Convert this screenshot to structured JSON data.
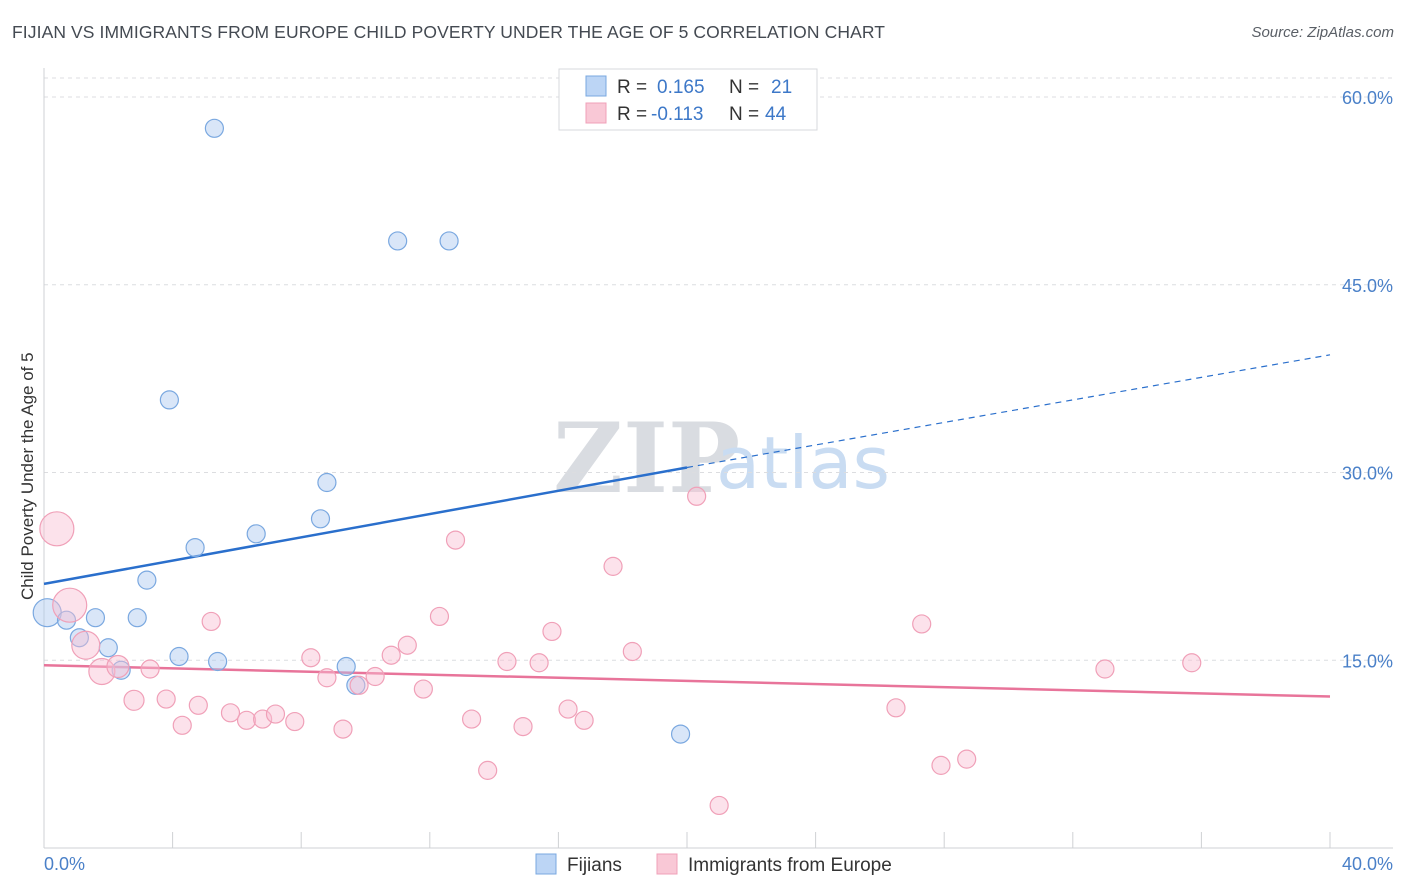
{
  "title": "FIJIAN VS IMMIGRANTS FROM EUROPE CHILD POVERTY UNDER THE AGE OF 5 CORRELATION CHART",
  "source": "Source: ZipAtlas.com",
  "watermark": {
    "zip": "ZIP",
    "atlas": "atlas"
  },
  "legend_box": {
    "rows": [
      {
        "r_label": "R = ",
        "r_value": "0.165",
        "n_label": "N = ",
        "n_value": "21"
      },
      {
        "r_label": "R = ",
        "r_value": "-0.113",
        "n_label": "N = ",
        "n_value": "44"
      }
    ]
  },
  "chart_data": {
    "type": "scatter",
    "title": "FIJIAN VS IMMIGRANTS FROM EUROPE CHILD POVERTY UNDER THE AGE OF 5 CORRELATION CHART",
    "xlabel": "",
    "ylabel": "Child Poverty Under the Age of 5",
    "xlim": [
      0,
      40
    ],
    "ylim": [
      0,
      63
    ],
    "x_tick_labels": [
      "0.0%",
      "40.0%"
    ],
    "y_ticks": [
      15,
      30,
      45,
      60
    ],
    "y_tick_labels": [
      "15.0%",
      "30.0%",
      "45.0%",
      "60.0%"
    ],
    "grid": "horizontal dashed",
    "legend_position": "bottom",
    "colors": {
      "fijians": "#7aa8e0",
      "europe": "#f0a0b8",
      "fijians_line": "#2a6fcc",
      "europe_line": "#e8749a"
    },
    "series": [
      {
        "name": "Fijians",
        "points": [
          [
            0.1,
            18.8,
            14
          ],
          [
            0.7,
            18.2,
            9
          ],
          [
            1.1,
            16.8,
            9
          ],
          [
            1.6,
            18.4,
            9
          ],
          [
            2.0,
            16.0,
            9
          ],
          [
            2.4,
            14.2,
            9
          ],
          [
            2.9,
            18.4,
            9
          ],
          [
            3.2,
            21.4,
            9
          ],
          [
            3.9,
            35.8,
            9
          ],
          [
            4.2,
            15.3,
            9
          ],
          [
            4.7,
            24.0,
            9
          ],
          [
            5.3,
            57.5,
            9
          ],
          [
            5.4,
            14.9,
            9
          ],
          [
            6.6,
            25.1,
            9
          ],
          [
            8.6,
            26.3,
            9
          ],
          [
            8.8,
            29.2,
            9
          ],
          [
            9.4,
            14.5,
            9
          ],
          [
            9.7,
            13.0,
            9
          ],
          [
            11.0,
            48.5,
            9
          ],
          [
            12.6,
            48.5,
            9
          ],
          [
            19.8,
            9.1,
            9
          ]
        ],
        "trend": {
          "x0": 0,
          "y0": 21.1,
          "x1": 20,
          "y1": 30.4,
          "dash_to_x": 40,
          "dash_to_y": 39.4
        }
      },
      {
        "name": "Immigrants from Europe",
        "points": [
          [
            0.4,
            25.5,
            17
          ],
          [
            0.8,
            19.4,
            17
          ],
          [
            1.3,
            16.2,
            14
          ],
          [
            1.8,
            14.1,
            13
          ],
          [
            2.3,
            14.5,
            11
          ],
          [
            2.8,
            11.8,
            10
          ],
          [
            3.3,
            14.3,
            9
          ],
          [
            3.8,
            11.9,
            9
          ],
          [
            4.3,
            9.8,
            9
          ],
          [
            4.8,
            11.4,
            9
          ],
          [
            5.2,
            18.1,
            9
          ],
          [
            5.8,
            10.8,
            9
          ],
          [
            6.3,
            10.2,
            9
          ],
          [
            6.8,
            10.3,
            9
          ],
          [
            7.2,
            10.7,
            9
          ],
          [
            7.8,
            10.1,
            9
          ],
          [
            8.3,
            15.2,
            9
          ],
          [
            8.8,
            13.6,
            9
          ],
          [
            9.3,
            9.5,
            9
          ],
          [
            9.8,
            13.0,
            9
          ],
          [
            10.3,
            13.7,
            9
          ],
          [
            10.8,
            15.4,
            9
          ],
          [
            11.3,
            16.2,
            9
          ],
          [
            11.8,
            12.7,
            9
          ],
          [
            12.3,
            18.5,
            9
          ],
          [
            12.8,
            24.6,
            9
          ],
          [
            13.3,
            10.3,
            9
          ],
          [
            13.8,
            6.2,
            9
          ],
          [
            14.4,
            14.9,
            9
          ],
          [
            14.9,
            9.7,
            9
          ],
          [
            15.4,
            14.8,
            9
          ],
          [
            15.8,
            17.3,
            9
          ],
          [
            16.3,
            11.1,
            9
          ],
          [
            16.8,
            10.2,
            9
          ],
          [
            17.7,
            22.5,
            9
          ],
          [
            18.3,
            15.7,
            9
          ],
          [
            20.3,
            28.1,
            9
          ],
          [
            21.0,
            3.4,
            9
          ],
          [
            26.5,
            11.2,
            9
          ],
          [
            27.3,
            17.9,
            9
          ],
          [
            27.9,
            6.6,
            9
          ],
          [
            28.7,
            7.1,
            9
          ],
          [
            33.0,
            14.3,
            9
          ],
          [
            35.7,
            14.8,
            9
          ]
        ],
        "trend": {
          "x0": 0,
          "y0": 14.6,
          "x1": 40,
          "y1": 12.1
        }
      }
    ]
  },
  "bottom_legend": [
    {
      "label": "Fijians"
    },
    {
      "label": "Immigrants from Europe"
    }
  ]
}
